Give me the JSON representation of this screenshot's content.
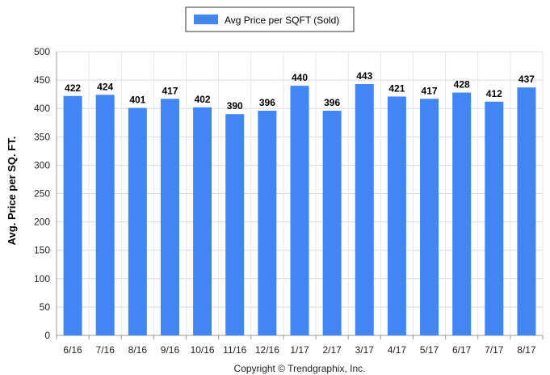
{
  "chart_data": {
    "type": "bar",
    "title": "",
    "xlabel": "",
    "ylabel": "Avg. Price per SQ. FT.",
    "categories": [
      "6/16",
      "7/16",
      "8/16",
      "9/16",
      "10/16",
      "11/16",
      "12/16",
      "1/17",
      "2/17",
      "3/17",
      "4/17",
      "5/17",
      "6/17",
      "7/17",
      "8/17"
    ],
    "series": [
      {
        "name": "Avg Price per SQFT (Sold)",
        "values": [
          422,
          424,
          401,
          417,
          402,
          390,
          396,
          440,
          396,
          443,
          421,
          417,
          428,
          412,
          437
        ],
        "color": "#4285f4"
      }
    ],
    "ylim": [
      0,
      500
    ],
    "yticks": [
      0,
      50,
      100,
      150,
      200,
      250,
      300,
      350,
      400,
      450,
      500
    ],
    "grid": true,
    "legend_position": "top-center",
    "data_labels": true
  },
  "footer": {
    "copyright": "Copyright © Trendgraphix, Inc."
  }
}
